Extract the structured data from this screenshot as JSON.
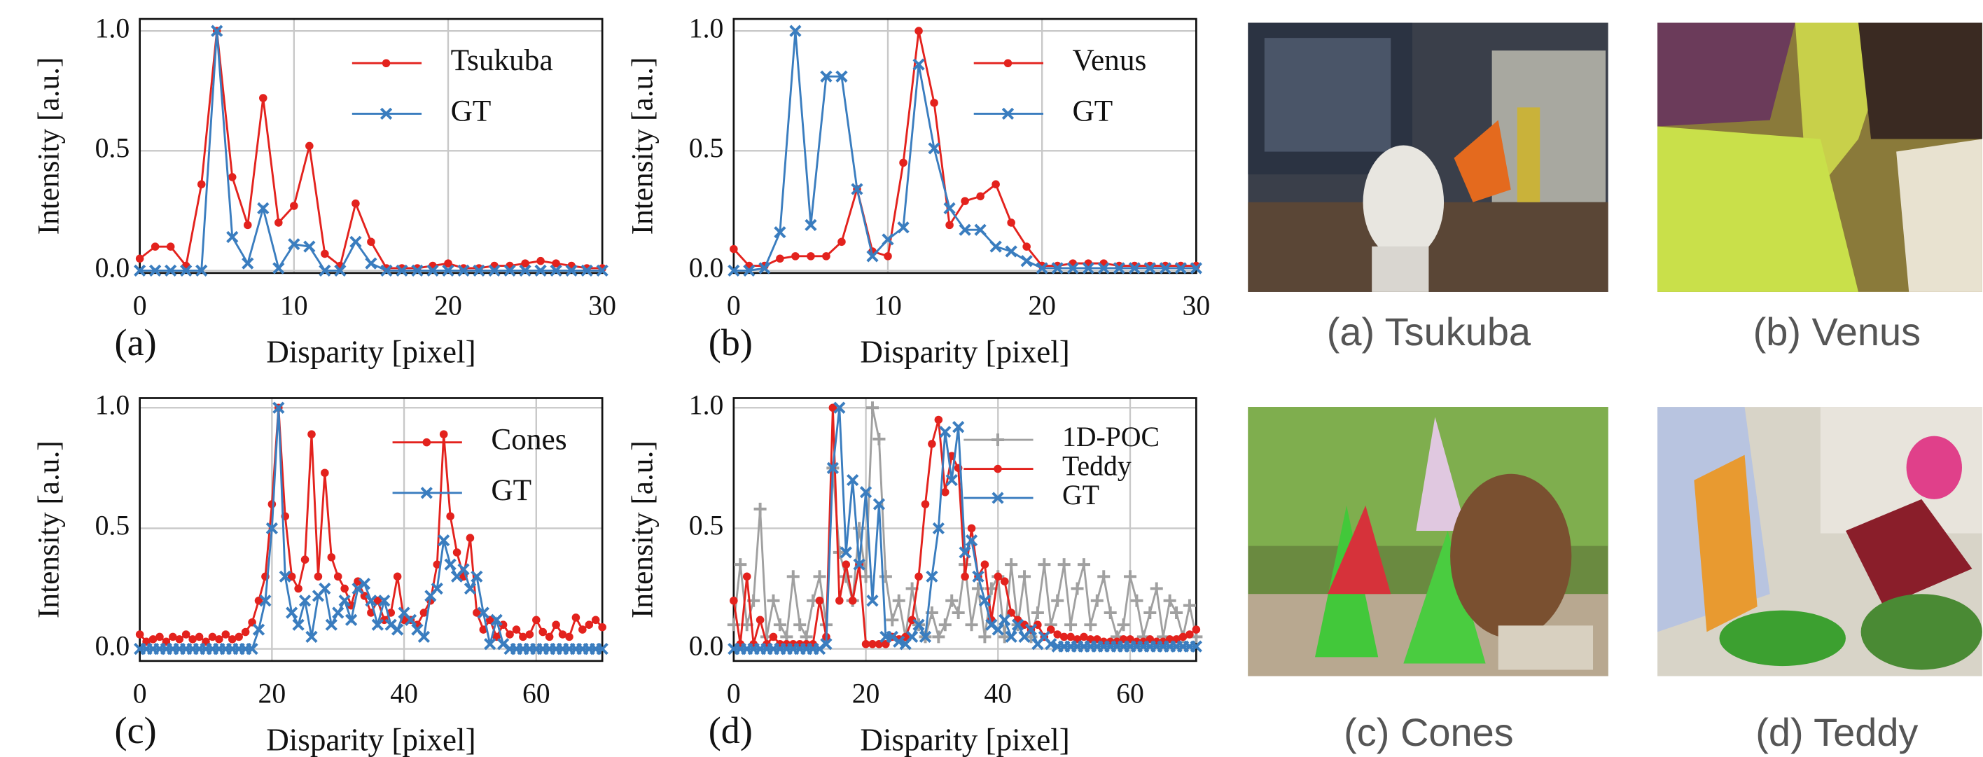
{
  "chart_data": [
    {
      "type": "line",
      "panel_label": "(a)",
      "x_label": "Disparity [pixel]",
      "y_label": "Intensity [a.u.]",
      "xlim": [
        0,
        30
      ],
      "ylim": [
        -0.01,
        1.05
      ],
      "xticks": [
        0,
        10,
        20,
        30
      ],
      "yticks": [
        {
          "value": 0,
          "label": "0.0"
        },
        0.5,
        {
          "value": 1,
          "label": "1.0"
        }
      ],
      "grid": true,
      "legend": "upper right",
      "x": [
        0,
        1,
        2,
        3,
        4,
        5,
        6,
        7,
        8,
        9,
        10,
        11,
        12,
        13,
        14,
        15,
        16,
        17,
        18,
        19,
        20,
        21,
        22,
        23,
        24,
        25,
        26,
        27,
        28,
        29,
        30
      ],
      "series": [
        {
          "name": "Tsukuba",
          "color": "#e3221d",
          "marker": "o",
          "values": [
            0.05,
            0.1,
            0.1,
            0.02,
            0.36,
            1.0,
            0.39,
            0.19,
            0.72,
            0.2,
            0.27,
            0.52,
            0.07,
            0.02,
            0.28,
            0.12,
            0.01,
            0.01,
            0.01,
            0.02,
            0.03,
            0.01,
            0.01,
            0.02,
            0.02,
            0.03,
            0.04,
            0.03,
            0.02,
            0.01,
            0.01
          ]
        },
        {
          "name": "GT",
          "color": "#3a7dbf",
          "marker": "x",
          "values": [
            0,
            0,
            0,
            0,
            0,
            1.0,
            0.14,
            0.03,
            0.26,
            0.01,
            0.11,
            0.1,
            0,
            0,
            0.12,
            0.03,
            0,
            0,
            0,
            0,
            0,
            0,
            0,
            0,
            0,
            0,
            0,
            0,
            0,
            0,
            0
          ]
        }
      ]
    },
    {
      "type": "line",
      "panel_label": "(b)",
      "x_label": "Disparity [pixel]",
      "y_label": "Intensity [a.u.]",
      "xlim": [
        0,
        30
      ],
      "ylim": [
        -0.01,
        1.05
      ],
      "xticks": [
        0,
        10,
        20,
        30
      ],
      "yticks": [
        {
          "value": 0,
          "label": "0.0"
        },
        0.5,
        {
          "value": 1,
          "label": "1.0"
        }
      ],
      "grid": true,
      "legend": "upper right",
      "x": [
        0,
        1,
        2,
        3,
        4,
        5,
        6,
        7,
        8,
        9,
        10,
        11,
        12,
        13,
        14,
        15,
        16,
        17,
        18,
        19,
        20,
        21,
        22,
        23,
        24,
        25,
        26,
        27,
        28,
        29,
        30
      ],
      "series": [
        {
          "name": "Venus",
          "color": "#e3221d",
          "marker": "o",
          "values": [
            0.09,
            0.02,
            0.02,
            0.05,
            0.06,
            0.06,
            0.06,
            0.12,
            0.34,
            0.08,
            0.06,
            0.45,
            1.0,
            0.7,
            0.19,
            0.29,
            0.31,
            0.36,
            0.2,
            0.1,
            0.02,
            0.02,
            0.03,
            0.03,
            0.03,
            0.02,
            0.02,
            0.02,
            0.02,
            0.02,
            0.02
          ]
        },
        {
          "name": "GT",
          "color": "#3a7dbf",
          "marker": "x",
          "values": [
            0,
            0,
            0.01,
            0.16,
            1.0,
            0.19,
            0.81,
            0.81,
            0.34,
            0.06,
            0.13,
            0.18,
            0.86,
            0.51,
            0.26,
            0.17,
            0.17,
            0.1,
            0.08,
            0.04,
            0.01,
            0.01,
            0.01,
            0.01,
            0.01,
            0.01,
            0.01,
            0.01,
            0.01,
            0.01,
            0.01
          ]
        }
      ]
    },
    {
      "type": "line",
      "panel_label": "(c)",
      "x_label": "Disparity [pixel]",
      "y_label": "Intensity [a.u.]",
      "xlim": [
        0,
        70
      ],
      "ylim": [
        -0.05,
        1.04
      ],
      "xticks": [
        0,
        20,
        40,
        60
      ],
      "yticks": [
        {
          "value": 0,
          "label": "0.0"
        },
        0.5,
        {
          "value": 1,
          "label": "1.0"
        }
      ],
      "grid": true,
      "legend": "upper right",
      "x": [
        0,
        1,
        2,
        3,
        4,
        5,
        6,
        7,
        8,
        9,
        10,
        11,
        12,
        13,
        14,
        15,
        16,
        17,
        18,
        19,
        20,
        21,
        22,
        23,
        24,
        25,
        26,
        27,
        28,
        29,
        30,
        31,
        32,
        33,
        34,
        35,
        36,
        37,
        38,
        39,
        40,
        41,
        42,
        43,
        44,
        45,
        46,
        47,
        48,
        49,
        50,
        51,
        52,
        53,
        54,
        55,
        56,
        57,
        58,
        59,
        60,
        61,
        62,
        63,
        64,
        65,
        66,
        67,
        68,
        69,
        70
      ],
      "series": [
        {
          "name": "Cones",
          "color": "#e3221d",
          "marker": "o",
          "values": [
            0.06,
            0.03,
            0.04,
            0.05,
            0.03,
            0.05,
            0.04,
            0.06,
            0.04,
            0.05,
            0.03,
            0.05,
            0.04,
            0.06,
            0.04,
            0.05,
            0.07,
            0.11,
            0.2,
            0.3,
            0.6,
            1.0,
            0.55,
            0.3,
            0.25,
            0.37,
            0.89,
            0.3,
            0.73,
            0.38,
            0.3,
            0.25,
            0.18,
            0.28,
            0.22,
            0.15,
            0.2,
            0.12,
            0.15,
            0.3,
            0.12,
            0.12,
            0.1,
            0.15,
            0.2,
            0.35,
            0.89,
            0.55,
            0.4,
            0.3,
            0.46,
            0.15,
            0.08,
            0.12,
            0.05,
            0.1,
            0.06,
            0.08,
            0.05,
            0.06,
            0.12,
            0.07,
            0.05,
            0.1,
            0.06,
            0.05,
            0.13,
            0.08,
            0.1,
            0.12,
            0.09
          ]
        },
        {
          "name": "GT",
          "color": "#3a7dbf",
          "marker": "x",
          "values": [
            0,
            0,
            0,
            0,
            0,
            0,
            0,
            0,
            0,
            0,
            0,
            0,
            0,
            0,
            0,
            0,
            0,
            0,
            0.08,
            0.2,
            0.5,
            1.0,
            0.3,
            0.15,
            0.1,
            0.2,
            0.05,
            0.22,
            0.25,
            0.1,
            0.15,
            0.2,
            0.12,
            0.25,
            0.27,
            0.2,
            0.1,
            0.2,
            0.1,
            0.08,
            0.15,
            0.12,
            0.08,
            0.05,
            0.22,
            0.25,
            0.45,
            0.35,
            0.3,
            0.33,
            0.25,
            0.3,
            0.15,
            0.02,
            0.12,
            0.02,
            0,
            0,
            0,
            0,
            0,
            0,
            0,
            0,
            0,
            0,
            0,
            0,
            0,
            0,
            0
          ]
        }
      ]
    },
    {
      "type": "line",
      "panel_label": "(d)",
      "x_label": "Disparity [pixel]",
      "y_label": "Intensity [a.u.]",
      "xlim": [
        0,
        70
      ],
      "ylim": [
        -0.05,
        1.04
      ],
      "xticks": [
        0,
        20,
        40,
        60
      ],
      "yticks": [
        {
          "value": 0,
          "label": "0.0"
        },
        0.5,
        {
          "value": 1,
          "label": "1.0"
        }
      ],
      "grid": true,
      "legend": "upper right",
      "x": [
        0,
        1,
        2,
        3,
        4,
        5,
        6,
        7,
        8,
        9,
        10,
        11,
        12,
        13,
        14,
        15,
        16,
        17,
        18,
        19,
        20,
        21,
        22,
        23,
        24,
        25,
        26,
        27,
        28,
        29,
        30,
        31,
        32,
        33,
        34,
        35,
        36,
        37,
        38,
        39,
        40,
        41,
        42,
        43,
        44,
        45,
        46,
        47,
        48,
        49,
        50,
        51,
        52,
        53,
        54,
        55,
        56,
        57,
        58,
        59,
        60,
        61,
        62,
        63,
        64,
        65,
        66,
        67,
        68,
        69,
        70
      ],
      "series": [
        {
          "name": "1D-POC",
          "color": "#a0a0a0",
          "marker": "+",
          "values": [
            0.1,
            0.35,
            0.1,
            0.2,
            0.58,
            0.05,
            0.2,
            0.1,
            0.05,
            0.3,
            0.1,
            0.05,
            0.2,
            0.3,
            0.1,
            0.75,
            0.4,
            0.3,
            0.2,
            0.5,
            0.3,
            1.0,
            0.87,
            0.3,
            0.12,
            0.2,
            0.05,
            0.25,
            0.1,
            0.05,
            0.15,
            0.05,
            0.1,
            0.2,
            0.15,
            0.35,
            0.1,
            0.25,
            0.05,
            0.25,
            0.3,
            0.05,
            0.35,
            0.1,
            0.3,
            0.05,
            0.15,
            0.35,
            0.1,
            0.2,
            0.35,
            0.1,
            0.25,
            0.35,
            0.1,
            0.2,
            0.3,
            0.15,
            0.05,
            0.1,
            0.3,
            0.2,
            0.05,
            0.15,
            0.25,
            0.05,
            0.2,
            0.15,
            0.05,
            0.18,
            0.05
          ]
        },
        {
          "name": "Teddy",
          "color": "#e3221d",
          "marker": "o",
          "values": [
            0.2,
            0.02,
            0.3,
            0.02,
            0.12,
            0.02,
            0.05,
            0.02,
            0.02,
            0.02,
            0.02,
            0.02,
            0.02,
            0.2,
            0.05,
            1.0,
            0.2,
            0.35,
            0.2,
            0.35,
            0.02,
            0.02,
            0.02,
            0.02,
            0.05,
            0.04,
            0.05,
            0.12,
            0.3,
            0.6,
            0.85,
            0.95,
            0.65,
            0.8,
            0.75,
            0.3,
            0.5,
            0.3,
            0.35,
            0.12,
            0.3,
            0.28,
            0.15,
            0.12,
            0.1,
            0.08,
            0.1,
            0.05,
            0.08,
            0.06,
            0.05,
            0.05,
            0.04,
            0.05,
            0.04,
            0.04,
            0.03,
            0.03,
            0.03,
            0.04,
            0.04,
            0.03,
            0.03,
            0.04,
            0.03,
            0.03,
            0.04,
            0.04,
            0.05,
            0.06,
            0.08
          ]
        },
        {
          "name": "GT",
          "color": "#3a7dbf",
          "marker": "x",
          "values": [
            0,
            0,
            0,
            0,
            0,
            0,
            0,
            0,
            0,
            0,
            0,
            0,
            0,
            0,
            0.02,
            0.75,
            1.0,
            0.4,
            0.7,
            0.35,
            0.65,
            0.2,
            0.6,
            0.05,
            0.05,
            0.03,
            0.02,
            0.05,
            0.1,
            0.05,
            0.3,
            0.5,
            0.9,
            0.7,
            0.92,
            0.4,
            0.45,
            0.3,
            0.2,
            0.1,
            0.08,
            0.12,
            0.05,
            0.1,
            0.05,
            0.08,
            0.02,
            0.05,
            0.02,
            0.01,
            0.01,
            0.01,
            0.01,
            0.01,
            0.01,
            0.01,
            0.01,
            0.01,
            0.01,
            0.01,
            0.01,
            0.01,
            0.01,
            0.01,
            0.01,
            0.01,
            0.01,
            0.01,
            0.01,
            0.01,
            0.01
          ]
        }
      ]
    }
  ],
  "images": [
    {
      "caption": "(a) Tsukuba"
    },
    {
      "caption": "(b) Venus"
    },
    {
      "caption": "(c) Cones"
    },
    {
      "caption": "(d) Teddy"
    }
  ]
}
